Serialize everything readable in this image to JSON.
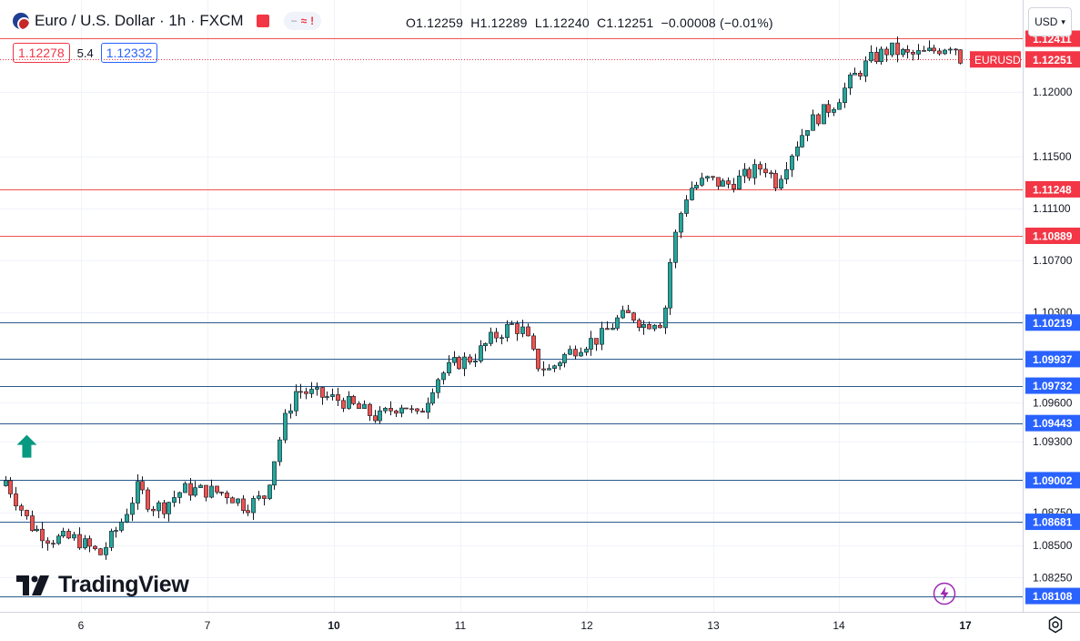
{
  "header": {
    "symbol_title": "Euro / U.S. Dollar · 1h · FXCM",
    "open_label": "O",
    "open": "1.12259",
    "high_label": "H",
    "high": "1.12289",
    "low_label": "L",
    "low": "1.12240",
    "close_label": "C",
    "close": "1.12251",
    "change": "−0.00008 (−0.01%)",
    "bid": "1.12278",
    "spread": "5.4",
    "ask": "1.12332",
    "currency": "USD",
    "currency_icon": "chevron-down-icon",
    "symbol_badge_icon": "eur-usd-flag-icon",
    "indicator_pill_icon": "wave-icon"
  },
  "logo": {
    "text": "TradingView",
    "icon": "tv-logo-icon"
  },
  "colors": {
    "up": "#26a69a",
    "down": "#ef5350",
    "support": "#ef5350",
    "resistance": "#2a5a8c",
    "label_red": "#f23645",
    "label_blue": "#2962ff",
    "arrow": "#089981",
    "price_tag": "#f23645"
  },
  "chart_data": {
    "type": "candlestick",
    "title": "Euro / U.S. Dollar · 1h · FXCM",
    "ylim": [
      1.0801,
      1.1265
    ],
    "y_ticks": [
      "1.12000",
      "1.11500",
      "1.11100",
      "1.10700",
      "1.10300",
      "1.09600",
      "1.09300",
      "1.08750",
      "1.08500",
      "1.08250"
    ],
    "x_ticks": [
      "6",
      "7",
      "10",
      "11",
      "12",
      "13",
      "14",
      "17"
    ],
    "horizontal_levels": [
      {
        "value": 1.12411,
        "label": "1.12411",
        "kind": "red"
      },
      {
        "value": 1.11248,
        "label": "1.11248",
        "kind": "red"
      },
      {
        "value": 1.10889,
        "label": "1.10889",
        "kind": "red"
      },
      {
        "value": 1.10219,
        "label": "1.10219",
        "kind": "blue"
      },
      {
        "value": 1.09937,
        "label": "1.09937",
        "kind": "blue"
      },
      {
        "value": 1.09732,
        "label": "1.09732",
        "kind": "blue"
      },
      {
        "value": 1.09443,
        "label": "1.09443",
        "kind": "blue"
      },
      {
        "value": 1.09002,
        "label": "1.09002",
        "kind": "blue"
      },
      {
        "value": 1.08681,
        "label": "1.08681",
        "kind": "blue"
      },
      {
        "value": 1.08108,
        "label": "1.08108",
        "kind": "blue"
      }
    ],
    "last_price": {
      "value": 1.12251,
      "label": "1.12251",
      "symbol": "EURUSD"
    },
    "marker": {
      "type": "arrow-up",
      "day_index": 2.55,
      "value": 1.0938
    },
    "day_points": [
      {
        "d": 5.4,
        "v": 1.09
      },
      {
        "d": 5.6,
        "v": 1.0865
      },
      {
        "d": 5.75,
        "v": 1.0855
      },
      {
        "d": 5.95,
        "v": 1.0855
      },
      {
        "d": 6.15,
        "v": 1.0843
      },
      {
        "d": 6.3,
        "v": 1.0865
      },
      {
        "d": 6.45,
        "v": 1.0895
      },
      {
        "d": 6.55,
        "v": 1.088
      },
      {
        "d": 6.65,
        "v": 1.088
      },
      {
        "d": 6.8,
        "v": 1.0893
      },
      {
        "d": 7.0,
        "v": 1.0892
      },
      {
        "d": 7.15,
        "v": 1.089
      },
      {
        "d": 7.3,
        "v": 1.088
      },
      {
        "d": 7.45,
        "v": 1.0888
      },
      {
        "d": 7.55,
        "v": 1.0925
      },
      {
        "d": 7.62,
        "v": 1.095
      },
      {
        "d": 7.7,
        "v": 1.097
      },
      {
        "d": 7.9,
        "v": 1.0965
      },
      {
        "d": 8.05,
        "v": 1.0962
      },
      {
        "d": 8.2,
        "v": 1.0955
      },
      {
        "d": 8.35,
        "v": 1.0948
      },
      {
        "d": 8.45,
        "v": 1.0955
      },
      {
        "d": 8.55,
        "v": 1.096
      },
      {
        "d": 8.65,
        "v": 1.0948
      },
      {
        "d": 8.72,
        "v": 1.096
      },
      {
        "d": 8.8,
        "v": 1.0978
      },
      {
        "d": 8.95,
        "v": 1.099
      },
      {
        "d": 9.1,
        "v": 1.0995
      },
      {
        "d": 9.25,
        "v": 1.101
      },
      {
        "d": 9.4,
        "v": 1.102
      },
      {
        "d": 9.5,
        "v": 1.1015
      },
      {
        "d": 9.6,
        "v": 1.099
      },
      {
        "d": 9.7,
        "v": 1.0985
      },
      {
        "d": 9.8,
        "v": 1.0995
      },
      {
        "d": 9.95,
        "v": 1.1005
      },
      {
        "d": 10.1,
        "v": 1.101
      },
      {
        "d": 10.25,
        "v": 1.1025
      },
      {
        "d": 10.35,
        "v": 1.1028
      },
      {
        "d": 10.45,
        "v": 1.102
      },
      {
        "d": 10.55,
        "v": 1.1025
      },
      {
        "d": 10.6,
        "v": 1.102
      },
      {
        "d": 10.65,
        "v": 1.1065
      },
      {
        "d": 10.72,
        "v": 1.11
      },
      {
        "d": 10.8,
        "v": 1.1125
      },
      {
        "d": 10.95,
        "v": 1.1132
      },
      {
        "d": 11.1,
        "v": 1.1128
      },
      {
        "d": 11.25,
        "v": 1.1135
      },
      {
        "d": 11.4,
        "v": 1.1143
      },
      {
        "d": 11.5,
        "v": 1.113
      },
      {
        "d": 11.6,
        "v": 1.115
      },
      {
        "d": 11.75,
        "v": 1.1175
      },
      {
        "d": 11.95,
        "v": 1.119
      },
      {
        "d": 12.1,
        "v": 1.121
      },
      {
        "d": 12.25,
        "v": 1.1225
      },
      {
        "d": 12.4,
        "v": 1.1233
      },
      {
        "d": 12.55,
        "v": 1.1228
      },
      {
        "d": 12.7,
        "v": 1.123
      },
      {
        "d": 12.9,
        "v": 1.1238
      },
      {
        "d": 13.05,
        "v": 1.1218
      },
      {
        "d": 13.2,
        "v": 1.123
      },
      {
        "d": 13.35,
        "v": 1.1225
      },
      {
        "d": 13.5,
        "v": 1.1238
      },
      {
        "d": 13.65,
        "v": 1.124
      },
      {
        "d": 13.8,
        "v": 1.1225
      }
    ]
  }
}
